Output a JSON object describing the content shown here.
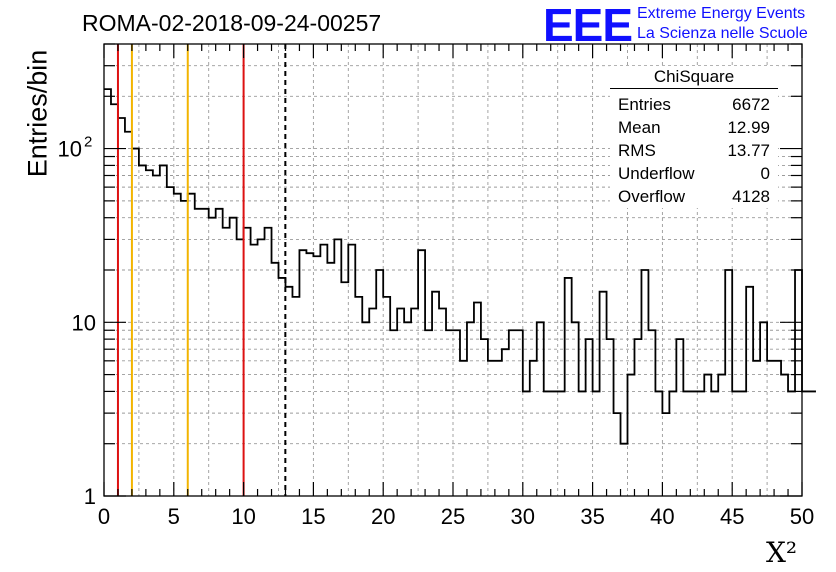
{
  "title": "ROMA-02-2018-09-24-00257",
  "logo": {
    "mark": "EEE",
    "line1": "Extreme Energy Events",
    "line2": "La Scienza nelle Scuole",
    "color": "#1010ff"
  },
  "stats": {
    "name": "ChiSquare",
    "rows": [
      {
        "label": "Entries",
        "value": "6672"
      },
      {
        "label": "Mean",
        "value": "12.99"
      },
      {
        "label": "RMS",
        "value": "13.77"
      },
      {
        "label": "Underflow",
        "value": "0"
      },
      {
        "label": "Overflow",
        "value": "4128"
      }
    ]
  },
  "chart_data": {
    "type": "histogram",
    "title": "ROMA-02-2018-09-24-00257",
    "xlabel": "X²",
    "ylabel": "Entries/bin",
    "xlim": [
      0,
      50
    ],
    "ylim": [
      1,
      400
    ],
    "ylog": true,
    "grid": true,
    "bin_width": 0.5,
    "xticks": [
      "0",
      "5",
      "10",
      "15",
      "20",
      "25",
      "30",
      "35",
      "40",
      "45",
      "50"
    ],
    "yticks": [
      {
        "value": 1,
        "label": "1"
      },
      {
        "value": 10,
        "label": "10"
      },
      {
        "value": 100,
        "label": "10",
        "sup": "2"
      }
    ],
    "values": [
      220,
      180,
      150,
      125,
      100,
      80,
      75,
      70,
      80,
      60,
      55,
      50,
      55,
      45,
      45,
      40,
      45,
      35,
      40,
      30,
      35,
      28,
      30,
      35,
      22,
      18,
      16,
      14,
      26,
      25,
      24,
      28,
      22,
      30,
      17,
      28,
      14,
      10,
      12,
      20,
      14,
      9,
      12,
      10,
      12,
      26,
      9,
      15,
      12,
      9,
      9,
      6,
      10,
      13,
      8,
      6,
      6,
      7,
      9,
      9,
      4,
      6,
      10,
      4,
      4,
      4,
      18,
      10,
      4,
      8,
      4,
      15,
      8,
      3,
      2,
      5,
      8,
      20,
      9,
      4,
      3,
      4,
      8,
      4,
      4,
      4,
      5,
      4,
      5,
      20,
      4,
      4,
      16,
      6,
      10,
      6,
      6,
      5,
      4,
      20,
      4,
      4
    ],
    "lines": [
      {
        "x": 1,
        "color": "#dd1111",
        "style": "solid"
      },
      {
        "x": 2,
        "color": "#f2b400",
        "style": "solid"
      },
      {
        "x": 6,
        "color": "#f2b400",
        "style": "solid"
      },
      {
        "x": 10,
        "color": "#dd1111",
        "style": "solid"
      },
      {
        "x": 12.99,
        "color": "#000000",
        "style": "dashed"
      }
    ]
  }
}
